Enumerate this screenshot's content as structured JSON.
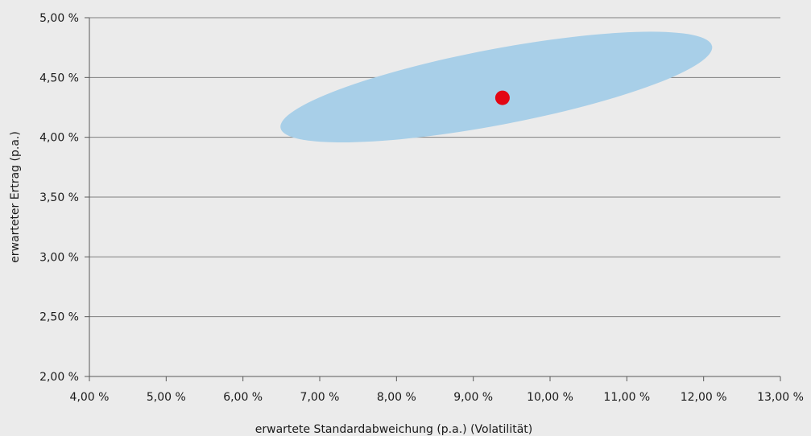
{
  "chart_data": {
    "type": "scatter",
    "title": "",
    "xlabel": "erwartete Standardabweichung (p.a.) (Volatilität)",
    "ylabel": "erwarteter Ertrag (p.a.)",
    "xlim": [
      4.0,
      13.0
    ],
    "ylim": [
      2.0,
      5.0
    ],
    "x_ticks": [
      4,
      5,
      6,
      7,
      8,
      9,
      10,
      11,
      12,
      13
    ],
    "y_ticks": [
      2.0,
      2.5,
      3.0,
      3.5,
      4.0,
      4.5,
      5.0
    ],
    "x_tick_labels": [
      "4,00 %",
      "5,00 %",
      "6,00 %",
      "7,00 %",
      "8,00 %",
      "9,00 %",
      "10,00 %",
      "11,00 %",
      "12,00 %",
      "13,00 %"
    ],
    "y_tick_labels": [
      "2,00 %",
      "2,50 %",
      "3,00 %",
      "3,50 %",
      "4,00 %",
      "4,50 %",
      "5,00 %"
    ],
    "grid": {
      "horizontal": true,
      "vertical": false
    },
    "legend": "none",
    "series": [
      {
        "kind": "point",
        "x": 9.38,
        "y": 4.33,
        "color": "#e30613"
      }
    ],
    "region": {
      "kind": "ellipse",
      "center_x": 9.3,
      "center_y": 4.42,
      "x_min": 6.55,
      "x_max": 12.17,
      "y_min": 3.95,
      "y_max": 4.9,
      "color": "#a8cfe8"
    }
  },
  "colors": {
    "background": "#ebebeb",
    "grid": "#7f7f7f",
    "axis": "#595959"
  }
}
